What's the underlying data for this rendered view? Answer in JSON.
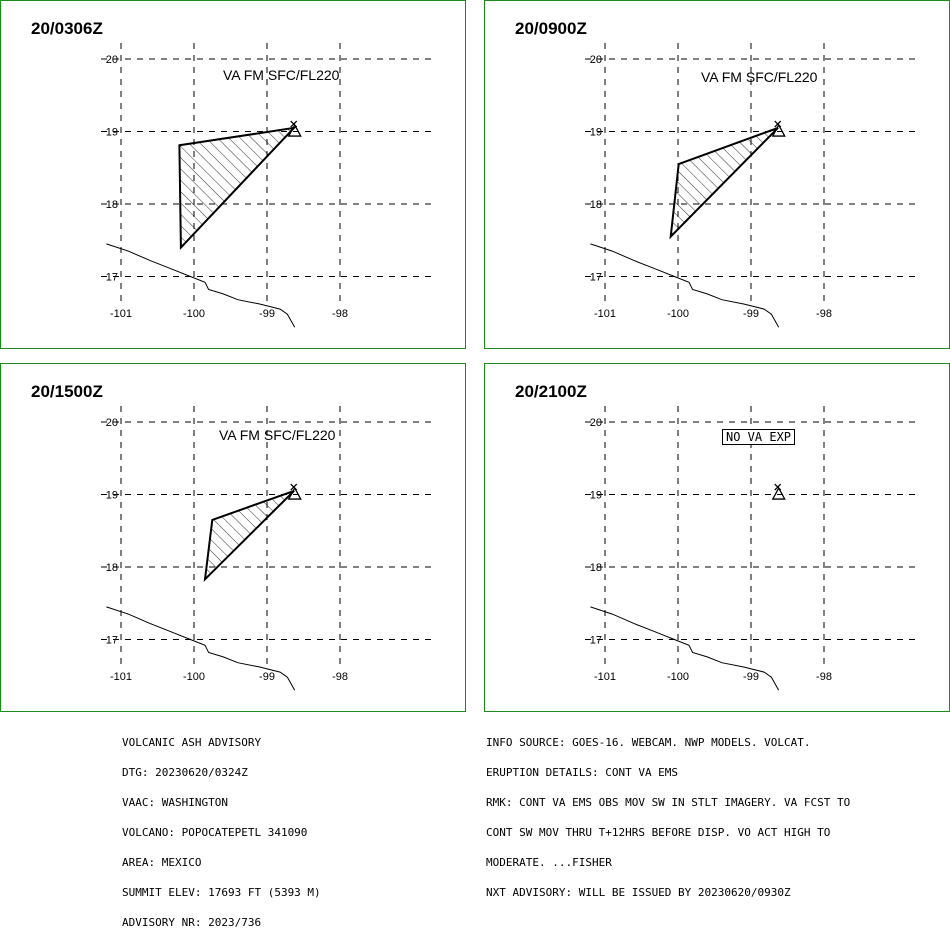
{
  "panels": [
    {
      "title": "20/0306Z",
      "level_label": "VA FM SFC/FL220",
      "no_va_label": ""
    },
    {
      "title": "20/0900Z",
      "level_label": "VA FM SFC/FL220",
      "no_va_label": ""
    },
    {
      "title": "20/1500Z",
      "level_label": "VA FM SFC/FL220",
      "no_va_label": ""
    },
    {
      "title": "20/2100Z",
      "level_label": "",
      "no_va_label": "NO VA EXP"
    }
  ],
  "axes": {
    "lat_ticks": [
      "20",
      "19",
      "18",
      "17"
    ],
    "lon_ticks": [
      "-101",
      "-100",
      "-99",
      "-98"
    ]
  },
  "map_data": {
    "volcano": {
      "lat": 19.02,
      "lon": -98.62
    },
    "ash_polygons": [
      [
        [
          -100.2,
          18.81
        ],
        [
          -98.63,
          19.05
        ],
        [
          -100.18,
          17.4
        ]
      ],
      [
        [
          -99.99,
          18.55
        ],
        [
          -98.63,
          19.05
        ],
        [
          -100.1,
          17.55
        ]
      ],
      [
        [
          -99.75,
          18.65
        ],
        [
          -98.63,
          19.05
        ],
        [
          -99.85,
          17.83
        ]
      ],
      []
    ],
    "coastline": [
      [
        -101.2,
        17.45
      ],
      [
        -100.9,
        17.35
      ],
      [
        -100.6,
        17.22
      ],
      [
        -100.3,
        17.1
      ],
      [
        -100.05,
        17.0
      ],
      [
        -99.85,
        16.92
      ],
      [
        -99.8,
        16.82
      ],
      [
        -99.6,
        16.76
      ],
      [
        -99.4,
        16.68
      ],
      [
        -99.1,
        16.62
      ],
      [
        -98.82,
        16.55
      ],
      [
        -98.72,
        16.48
      ],
      [
        -98.62,
        16.3
      ]
    ]
  },
  "advisory_left": [
    "VOLCANIC ASH ADVISORY",
    "DTG: 20230620/0324Z",
    "VAAC: WASHINGTON",
    "VOLCANO: POPOCATEPETL 341090",
    "AREA: MEXICO",
    "SUMMIT ELEV: 17693 FT (5393 M)",
    "ADVISORY NR: 2023/736"
  ],
  "advisory_right": [
    "INFO SOURCE: GOES-16. WEBCAM. NWP MODELS. VOLCAT.",
    "ERUPTION DETAILS: CONT VA EMS",
    "RMK: CONT VA EMS OBS MOV SW IN STLT IMAGERY. VA FCST TO",
    "CONT SW MOV THRU T+12HRS BEFORE DISP. VO ACT HIGH TO",
    "MODERATE. ...FISHER",
    "NXT ADVISORY: WILL BE ISSUED BY 20230620/0930Z"
  ]
}
